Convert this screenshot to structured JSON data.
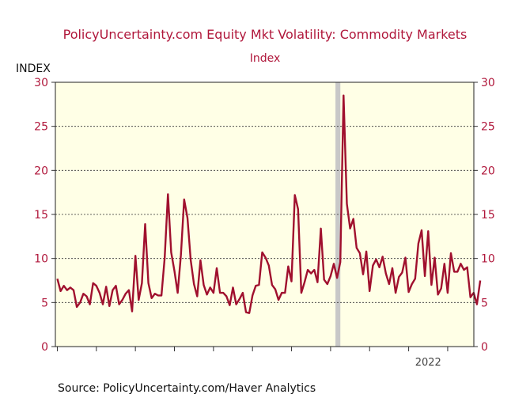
{
  "chart_data": {
    "type": "line",
    "title": "PolicyUncertainty.com Equity Mkt Volatility: Commodity Markets",
    "subtitle": "Index",
    "ylabel": "INDEX",
    "source": "Source:  PolicyUncertainty.com/Haver Analytics",
    "ylim": [
      0,
      30
    ],
    "yticks": [
      0,
      5,
      10,
      15,
      20,
      25,
      30
    ],
    "grid": true,
    "x_tick_labels": [
      {
        "label": "2022",
        "x": 2022
      }
    ],
    "xlim": [
      2012.95,
      2023.67
    ],
    "shaded_periods": [
      {
        "start": 2020.125,
        "end": 2020.25
      }
    ],
    "colors": {
      "line": "#a0102e",
      "plot_bg": "#ffffe6",
      "title": "#b0173b",
      "tick_label": "#b0173b",
      "shading": "#c8c8c8"
    },
    "series": [
      {
        "values": [
          7.7,
          6.3,
          6.9,
          6.4,
          6.7,
          6.4,
          4.5,
          5.0,
          6.0,
          5.7,
          4.8,
          7.2,
          6.9,
          6.1,
          4.8,
          6.8,
          4.6,
          6.4,
          6.9,
          4.8,
          5.3,
          6.0,
          6.4,
          4.0,
          10.3,
          5.3,
          7.2,
          13.9,
          7.2,
          5.5,
          6.0,
          5.8,
          5.8,
          10.1,
          17.3,
          10.7,
          8.6,
          6.1,
          10.4,
          16.7,
          14.6,
          9.8,
          7.1,
          5.7,
          9.8,
          7.0,
          5.9,
          6.7,
          6.1,
          8.9,
          6.1,
          6.1,
          5.7,
          4.7,
          6.7,
          4.8,
          5.4,
          6.1,
          3.9,
          3.8,
          5.8,
          6.9,
          7.0,
          10.7,
          10.1,
          9.2,
          7.0,
          6.5,
          5.3,
          6.1,
          6.1,
          9.1,
          7.4,
          17.2,
          15.6,
          6.1,
          7.3,
          8.7,
          8.3,
          8.7,
          7.3,
          13.4,
          7.6,
          7.1,
          8.0,
          9.4,
          7.8,
          9.6,
          28.5,
          16.2,
          13.4,
          14.5,
          11.2,
          10.6,
          8.2,
          10.8,
          6.3,
          9.2,
          9.9,
          9.0,
          10.2,
          8.3,
          7.1,
          8.9,
          6.1,
          7.9,
          8.4,
          10.1,
          6.2,
          7.1,
          7.7,
          11.7,
          13.2,
          8.0,
          13.1,
          7.0,
          10.1,
          5.9,
          6.6,
          9.4,
          6.1,
          10.6,
          8.5,
          8.5,
          9.4,
          8.7,
          9.0,
          5.6,
          6.1,
          4.8,
          7.5
        ],
        "start": 2013.0,
        "step_per_point": 0.083333
      }
    ]
  }
}
